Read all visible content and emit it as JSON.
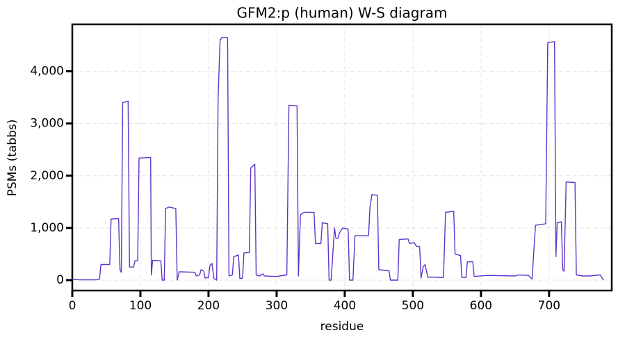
{
  "chart_data": {
    "type": "line",
    "title": "GFM2:p (human) W-S diagram",
    "x_label": "residue",
    "y_label": "PSMs (tabbs)",
    "color": "#5e35c9",
    "grid": true,
    "xlim": [
      0,
      792
    ],
    "ylim": [
      -200,
      4900
    ],
    "xticks": [
      0,
      100,
      200,
      300,
      400,
      500,
      600,
      700
    ],
    "yticks": [
      0,
      {
        "value": 1000,
        "label": "1,000"
      },
      {
        "value": 2000,
        "label": "2,000"
      },
      {
        "value": 3000,
        "label": "3,000"
      },
      {
        "value": 4000,
        "label": "4,000"
      }
    ],
    "x": [
      0,
      10,
      35,
      40,
      42,
      55,
      57,
      68,
      70,
      72,
      74,
      82,
      84,
      90,
      92,
      96,
      98,
      115,
      116,
      118,
      130,
      132,
      135,
      137,
      142,
      152,
      154,
      157,
      180,
      182,
      187,
      189,
      193,
      195,
      200,
      202,
      205,
      208,
      212,
      214,
      217,
      220,
      228,
      230,
      235,
      237,
      244,
      246,
      250,
      252,
      260,
      262,
      268,
      270,
      275,
      280,
      282,
      300,
      315,
      318,
      330,
      332,
      335,
      340,
      355,
      357,
      365,
      367,
      375,
      377,
      380,
      385,
      387,
      390,
      392,
      397,
      405,
      407,
      412,
      415,
      435,
      437,
      440,
      448,
      450,
      465,
      467,
      478,
      480,
      493,
      495,
      502,
      505,
      510,
      512,
      515,
      518,
      522,
      525,
      545,
      548,
      560,
      562,
      570,
      572,
      578,
      580,
      588,
      590,
      610,
      650,
      655,
      670,
      672,
      675,
      680,
      695,
      698,
      708,
      710,
      712,
      718,
      720,
      722,
      725,
      738,
      740,
      750,
      760,
      775,
      780
    ],
    "values": [
      20,
      5,
      5,
      20,
      300,
      300,
      1170,
      1180,
      200,
      150,
      3400,
      3430,
      250,
      250,
      370,
      370,
      2340,
      2350,
      100,
      380,
      370,
      0,
      0,
      1370,
      1400,
      1370,
      0,
      160,
      150,
      80,
      100,
      200,
      170,
      40,
      50,
      280,
      320,
      30,
      0,
      3470,
      4600,
      4650,
      4650,
      80,
      100,
      450,
      480,
      30,
      40,
      520,
      530,
      2150,
      2220,
      100,
      80,
      120,
      80,
      70,
      100,
      3350,
      3340,
      80,
      1250,
      1300,
      1300,
      700,
      700,
      1100,
      1080,
      0,
      0,
      1000,
      800,
      800,
      900,
      1000,
      980,
      0,
      0,
      850,
      850,
      1400,
      1640,
      1620,
      200,
      180,
      0,
      0,
      780,
      790,
      700,
      720,
      650,
      640,
      40,
      250,
      300,
      50,
      60,
      50,
      1300,
      1320,
      500,
      470,
      50,
      50,
      350,
      350,
      70,
      90,
      80,
      100,
      90,
      60,
      20,
      1050,
      1080,
      4550,
      4570,
      450,
      1100,
      1120,
      200,
      170,
      1880,
      1870,
      100,
      80,
      80,
      100,
      0
    ]
  }
}
